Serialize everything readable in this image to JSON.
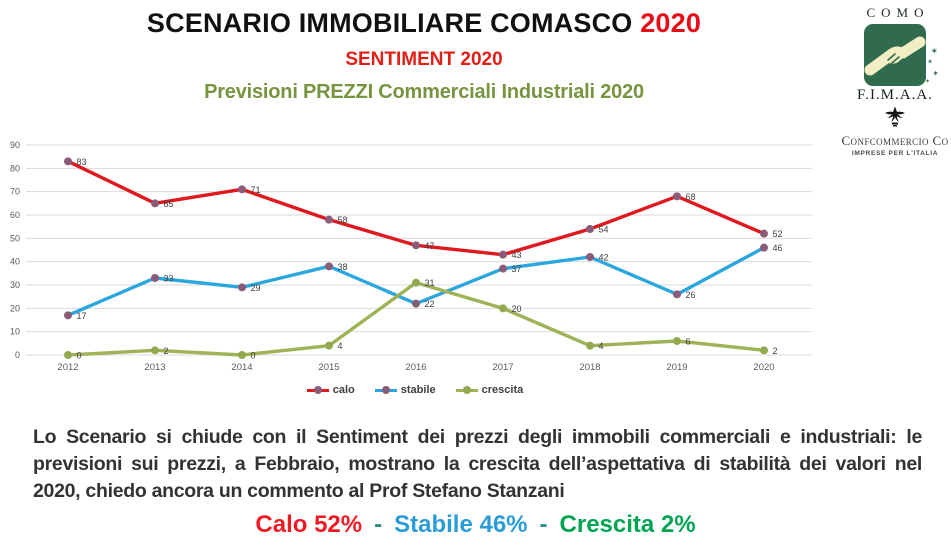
{
  "header": {
    "title_main": "SCENARIO IMMOBILIARE COMASCO ",
    "title_year": "2020",
    "subtitle1": "SENTIMENT 2020",
    "subtitle2": "Previsioni  PREZZI Commerciali Industriali 2020"
  },
  "logo": {
    "city": "COMO",
    "org": "F.I.M.A.A.",
    "assoc": "Confcommercio Co",
    "assoc_sub": "IMPRESE PER L'ITALIA"
  },
  "colors": {
    "title_year": "#e80c16",
    "subtitle1": "#e02017",
    "subtitle2": "#77953f",
    "summary_sep": "#2e8b8b"
  },
  "chart_data": {
    "type": "line",
    "title": "",
    "xlabel": "",
    "ylabel": "",
    "categories": [
      "2012",
      "2013",
      "2014",
      "2015",
      "2016",
      "2017",
      "2018",
      "2019",
      "2020"
    ],
    "series": [
      {
        "name": "calo",
        "color": "#e0191f",
        "marker": "#8b5c7a",
        "values": [
          83,
          65,
          71,
          58,
          47,
          43,
          54,
          68,
          52
        ]
      },
      {
        "name": "stabile",
        "color": "#2ba7de",
        "marker": "#8b5c7a",
        "values": [
          17,
          33,
          29,
          38,
          22,
          37,
          42,
          26,
          46
        ]
      },
      {
        "name": "crescita",
        "color": "#9db356",
        "marker": "#93a94f",
        "values": [
          0,
          2,
          0,
          4,
          31,
          20,
          4,
          6,
          2
        ]
      }
    ],
    "ylim": [
      0,
      90
    ],
    "ytick_step": 10,
    "grid": true,
    "legend_position": "bottom",
    "data_labels": true
  },
  "paragraph": "Lo Scenario si chiude con il Sentiment dei prezzi degli immobili commerciali e industriali: le previsioni sui prezzi, a Febbraio, mostrano la crescita dell’aspettativa di stabilità dei valori nel 2020, chiedo ancora un commento al Prof Stefano Stanzani",
  "summary": {
    "separator": "-",
    "items": [
      {
        "label": "Calo 52%",
        "color": "#ed1c24"
      },
      {
        "label": "Stabile 46%",
        "color": "#2b9cd8"
      },
      {
        "label": "Crescita 2%",
        "color": "#00a551"
      }
    ]
  }
}
